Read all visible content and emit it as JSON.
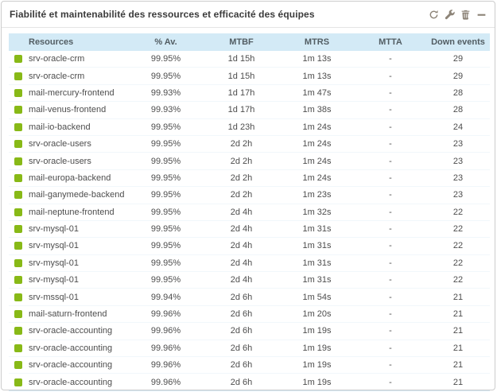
{
  "widget": {
    "title": "Fiabilité et maintenabilité des ressources et efficacité des équipes",
    "toolbar": {
      "refresh": "refresh",
      "configure": "configure",
      "delete": "delete",
      "minimize": "minimize"
    }
  },
  "colors": {
    "status_ok_green": "#88b917",
    "table_header_bg": "#d3eaf6",
    "toolbar_icon": "#8d8478"
  },
  "table": {
    "columns": [
      "Resources",
      "% Av.",
      "MTBF",
      "MTRS",
      "MTTA",
      "Down events"
    ],
    "rows": [
      {
        "status": "ok",
        "resource": "srv-oracle-crm",
        "availability": "99.95%",
        "mtbf": "1d 15h",
        "mtrs": "1m 13s",
        "mtta": "-",
        "down_events": "29"
      },
      {
        "status": "ok",
        "resource": "srv-oracle-crm",
        "availability": "99.95%",
        "mtbf": "1d 15h",
        "mtrs": "1m 13s",
        "mtta": "-",
        "down_events": "29"
      },
      {
        "status": "ok",
        "resource": "mail-mercury-frontend",
        "availability": "99.93%",
        "mtbf": "1d 17h",
        "mtrs": "1m 47s",
        "mtta": "-",
        "down_events": "28"
      },
      {
        "status": "ok",
        "resource": "mail-venus-frontend",
        "availability": "99.93%",
        "mtbf": "1d 17h",
        "mtrs": "1m 38s",
        "mtta": "-",
        "down_events": "28"
      },
      {
        "status": "ok",
        "resource": "mail-io-backend",
        "availability": "99.95%",
        "mtbf": "1d 23h",
        "mtrs": "1m 24s",
        "mtta": "-",
        "down_events": "24"
      },
      {
        "status": "ok",
        "resource": "srv-oracle-users",
        "availability": "99.95%",
        "mtbf": "2d 2h",
        "mtrs": "1m 24s",
        "mtta": "-",
        "down_events": "23"
      },
      {
        "status": "ok",
        "resource": "srv-oracle-users",
        "availability": "99.95%",
        "mtbf": "2d 2h",
        "mtrs": "1m 24s",
        "mtta": "-",
        "down_events": "23"
      },
      {
        "status": "ok",
        "resource": "mail-europa-backend",
        "availability": "99.95%",
        "mtbf": "2d 2h",
        "mtrs": "1m 24s",
        "mtta": "-",
        "down_events": "23"
      },
      {
        "status": "ok",
        "resource": "mail-ganymede-backend",
        "availability": "99.95%",
        "mtbf": "2d 2h",
        "mtrs": "1m 23s",
        "mtta": "-",
        "down_events": "23"
      },
      {
        "status": "ok",
        "resource": "mail-neptune-frontend",
        "availability": "99.95%",
        "mtbf": "2d 4h",
        "mtrs": "1m 32s",
        "mtta": "-",
        "down_events": "22"
      },
      {
        "status": "ok",
        "resource": "srv-mysql-01",
        "availability": "99.95%",
        "mtbf": "2d 4h",
        "mtrs": "1m 31s",
        "mtta": "-",
        "down_events": "22"
      },
      {
        "status": "ok",
        "resource": "srv-mysql-01",
        "availability": "99.95%",
        "mtbf": "2d 4h",
        "mtrs": "1m 31s",
        "mtta": "-",
        "down_events": "22"
      },
      {
        "status": "ok",
        "resource": "srv-mysql-01",
        "availability": "99.95%",
        "mtbf": "2d 4h",
        "mtrs": "1m 31s",
        "mtta": "-",
        "down_events": "22"
      },
      {
        "status": "ok",
        "resource": "srv-mysql-01",
        "availability": "99.95%",
        "mtbf": "2d 4h",
        "mtrs": "1m 31s",
        "mtta": "-",
        "down_events": "22"
      },
      {
        "status": "ok",
        "resource": "srv-mssql-01",
        "availability": "99.94%",
        "mtbf": "2d 6h",
        "mtrs": "1m 54s",
        "mtta": "-",
        "down_events": "21"
      },
      {
        "status": "ok",
        "resource": "mail-saturn-frontend",
        "availability": "99.96%",
        "mtbf": "2d 6h",
        "mtrs": "1m 20s",
        "mtta": "-",
        "down_events": "21"
      },
      {
        "status": "ok",
        "resource": "srv-oracle-accounting",
        "availability": "99.96%",
        "mtbf": "2d 6h",
        "mtrs": "1m 19s",
        "mtta": "-",
        "down_events": "21"
      },
      {
        "status": "ok",
        "resource": "srv-oracle-accounting",
        "availability": "99.96%",
        "mtbf": "2d 6h",
        "mtrs": "1m 19s",
        "mtta": "-",
        "down_events": "21"
      },
      {
        "status": "ok",
        "resource": "srv-oracle-accounting",
        "availability": "99.96%",
        "mtbf": "2d 6h",
        "mtrs": "1m 19s",
        "mtta": "-",
        "down_events": "21"
      },
      {
        "status": "ok",
        "resource": "srv-oracle-accounting",
        "availability": "99.96%",
        "mtbf": "2d 6h",
        "mtrs": "1m 19s",
        "mtta": "-",
        "down_events": "21"
      }
    ]
  }
}
